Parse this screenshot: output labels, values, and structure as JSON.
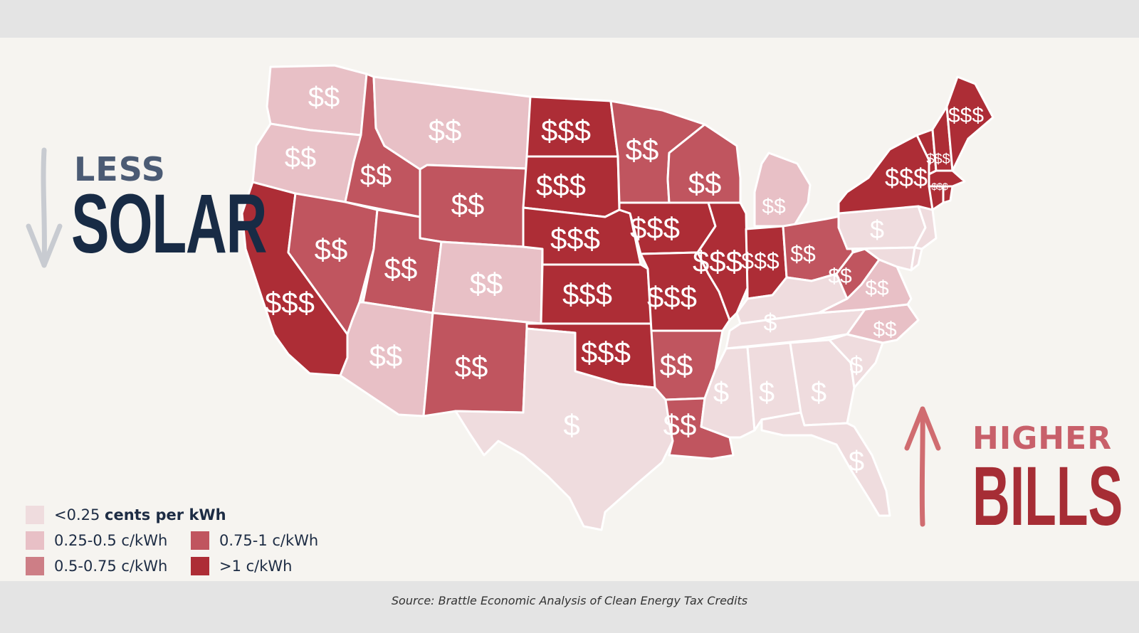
{
  "header": {
    "less": "LESS",
    "solar": "SOLAR",
    "higher": "HIGHER",
    "bills": "BILLS"
  },
  "source": "Source: Brattle Economic Analysis of Clean Energy Tax Credits",
  "colors": {
    "lvl1": "#efdcde",
    "lvl2": "#e8c0c6",
    "lvl3": "#cd7e86",
    "lvl4": "#c0555f",
    "lvl5": "#ad2d36",
    "navy": "#182b45",
    "red": "#a62d35"
  },
  "legend": {
    "items": [
      {
        "prefix": "<0.25 ",
        "bold": "cents per kWh",
        "level": "lvl1"
      },
      {
        "prefix": "0.25-0.5 c/kWh",
        "bold": "",
        "level": "lvl2"
      },
      {
        "prefix": "0.75-1 c/kWh",
        "bold": "",
        "level": "lvl4"
      },
      {
        "prefix": "0.5-0.75 c/kWh",
        "bold": "",
        "level": "lvl3"
      },
      {
        "prefix": ">1 c/kWh",
        "bold": "",
        "level": "lvl5"
      }
    ]
  },
  "states": [
    {
      "id": "WA",
      "label": "$$",
      "level": "lvl2"
    },
    {
      "id": "OR",
      "label": "$$",
      "level": "lvl2"
    },
    {
      "id": "CA",
      "label": "$$$",
      "level": "lvl5"
    },
    {
      "id": "ID",
      "label": "$$",
      "level": "lvl4"
    },
    {
      "id": "NV",
      "label": "$$",
      "level": "lvl4"
    },
    {
      "id": "MT",
      "label": "$$",
      "level": "lvl2"
    },
    {
      "id": "WY",
      "label": "$$",
      "level": "lvl4"
    },
    {
      "id": "UT",
      "label": "$$",
      "level": "lvl4"
    },
    {
      "id": "AZ",
      "label": "$$",
      "level": "lvl2"
    },
    {
      "id": "CO",
      "label": "$$",
      "level": "lvl2"
    },
    {
      "id": "NM",
      "label": "$$",
      "level": "lvl4"
    },
    {
      "id": "ND",
      "label": "$$$",
      "level": "lvl5"
    },
    {
      "id": "SD",
      "label": "$$$",
      "level": "lvl5"
    },
    {
      "id": "NE",
      "label": "$$$",
      "level": "lvl5"
    },
    {
      "id": "KS",
      "label": "$$$",
      "level": "lvl5"
    },
    {
      "id": "OK",
      "label": "$$$",
      "level": "lvl5"
    },
    {
      "id": "TX",
      "label": "$",
      "level": "lvl1"
    },
    {
      "id": "MN",
      "label": "$$",
      "level": "lvl4"
    },
    {
      "id": "IA",
      "label": "$$$",
      "level": "lvl5"
    },
    {
      "id": "MO",
      "label": "$$$",
      "level": "lvl5"
    },
    {
      "id": "AR",
      "label": "$$",
      "level": "lvl4"
    },
    {
      "id": "LA",
      "label": "$$",
      "level": "lvl4"
    },
    {
      "id": "WI",
      "label": "$$",
      "level": "lvl4"
    },
    {
      "id": "IL",
      "label": "$$$",
      "level": "lvl5"
    },
    {
      "id": "MI",
      "label": "$$",
      "level": "lvl2"
    },
    {
      "id": "IN",
      "label": "$$$",
      "level": "lvl5"
    },
    {
      "id": "OH",
      "label": "$$",
      "level": "lvl4"
    },
    {
      "id": "KY",
      "label": "$",
      "level": "lvl1"
    },
    {
      "id": "TN",
      "label": "",
      "level": "lvl1"
    },
    {
      "id": "MS",
      "label": "$",
      "level": "lvl1"
    },
    {
      "id": "AL",
      "label": "$",
      "level": "lvl1"
    },
    {
      "id": "GA",
      "label": "$",
      "level": "lvl1"
    },
    {
      "id": "FL",
      "label": "$",
      "level": "lvl1"
    },
    {
      "id": "SC",
      "label": "$",
      "level": "lvl1"
    },
    {
      "id": "NC",
      "label": "$$",
      "level": "lvl2"
    },
    {
      "id": "VA",
      "label": "$$",
      "level": "lvl2"
    },
    {
      "id": "WV",
      "label": "$$",
      "level": "lvl4"
    },
    {
      "id": "PA",
      "label": "$",
      "level": "lvl1"
    },
    {
      "id": "NY",
      "label": "$$$",
      "level": "lvl5"
    },
    {
      "id": "VT",
      "label": "$$$",
      "level": "lvl5"
    },
    {
      "id": "NH",
      "label": "",
      "level": "lvl5"
    },
    {
      "id": "ME",
      "label": "$$$",
      "level": "lvl5"
    },
    {
      "id": "MA",
      "label": "$$$",
      "level": "lvl5"
    },
    {
      "id": "CT",
      "label": "",
      "level": "lvl5"
    },
    {
      "id": "RI",
      "label": "",
      "level": "lvl5"
    },
    {
      "id": "NJ",
      "label": "",
      "level": "lvl1"
    },
    {
      "id": "MD",
      "label": "",
      "level": "lvl1"
    },
    {
      "id": "DE",
      "label": "",
      "level": "lvl1"
    }
  ]
}
